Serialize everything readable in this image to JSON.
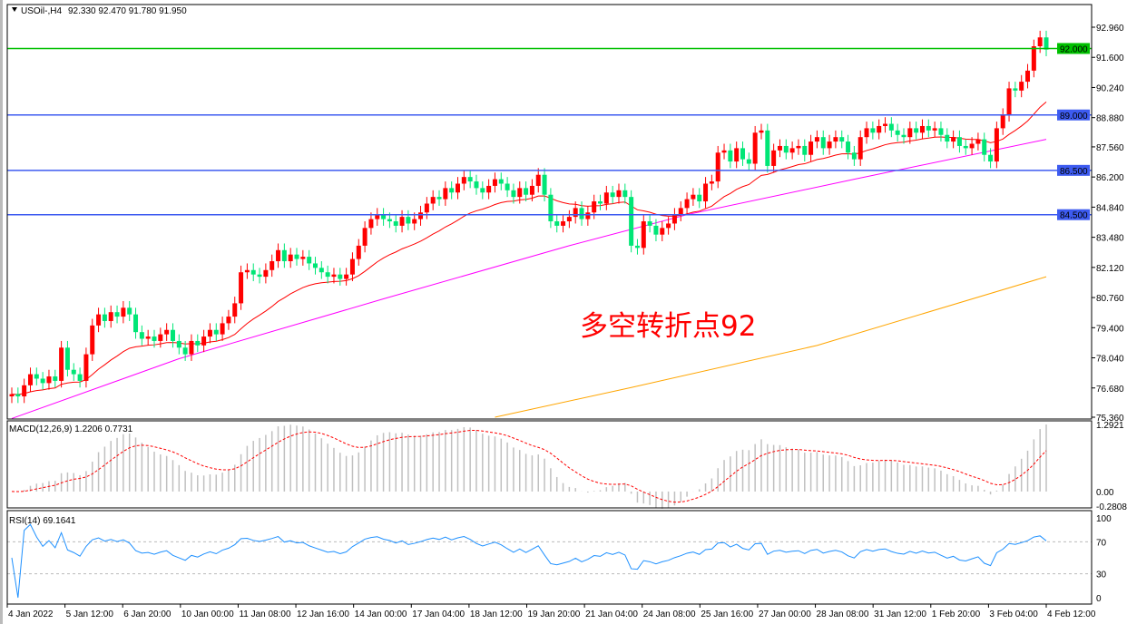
{
  "header": {
    "symbol": "USOil-,H4",
    "ohlc": "92.330 92.470 91.780 91.950"
  },
  "annotation": "多空转折点92",
  "colors": {
    "up": "#ff0000",
    "down": "#00e676",
    "ma_fast": "#ff0000",
    "ma_mid": "#ff00ff",
    "ma_slow": "#ffa500",
    "support_line": "#3d5bf0",
    "key_line": "#00c000",
    "macd_hist": "#c0c0c0",
    "macd_signal": "#ff0000",
    "rsi": "#1e90ff"
  },
  "chart_data": [
    {
      "type": "candlestick",
      "title": "USOil-,H4",
      "ylim": [
        75.36,
        92.96
      ],
      "y_ticks": [
        "92.960",
        "91.600",
        "90.240",
        "88.880",
        "87.560",
        "86.200",
        "84.840",
        "83.480",
        "82.120",
        "80.760",
        "79.400",
        "78.040",
        "76.680",
        "75.360"
      ],
      "x_ticks": [
        "4 Jan 2022",
        "5 Jan 12:00",
        "6 Jan 20:00",
        "10 Jan 00:00",
        "11 Jan 08:00",
        "12 Jan 16:00",
        "14 Jan 00:00",
        "17 Jan 04:00",
        "18 Jan 12:00",
        "19 Jan 20:00",
        "21 Jan 04:00",
        "24 Jan 08:00",
        "25 Jan 16:00",
        "27 Jan 00:00",
        "28 Jan 08:00",
        "31 Jan 12:00",
        "1 Feb 20:00",
        "3 Feb 04:00",
        "4 Feb 12:00"
      ],
      "closes": [
        76.4,
        76.3,
        76.8,
        77.3,
        77.1,
        76.9,
        77.2,
        77.0,
        78.5,
        77.5,
        77.3,
        77.0,
        78.2,
        79.5,
        80.0,
        79.7,
        80.1,
        79.9,
        80.3,
        80.0,
        79.2,
        78.9,
        79.0,
        78.8,
        79.1,
        79.3,
        78.8,
        78.5,
        78.2,
        78.8,
        78.6,
        79.0,
        79.3,
        79.1,
        79.6,
        79.9,
        80.5,
        81.9,
        82.0,
        81.8,
        81.7,
        82.0,
        82.4,
        82.9,
        82.4,
        82.7,
        82.5,
        82.6,
        82.3,
        82.1,
        81.9,
        81.7,
        81.8,
        81.6,
        81.8,
        82.5,
        83.1,
        83.9,
        84.3,
        84.5,
        84.3,
        84.2,
        84.0,
        84.4,
        84.1,
        84.3,
        84.6,
        85.0,
        85.3,
        85.2,
        85.7,
        85.5,
        85.9,
        86.2,
        86.0,
        85.7,
        85.5,
        85.8,
        86.1,
        85.9,
        85.6,
        85.3,
        85.7,
        85.4,
        85.8,
        86.3,
        85.4,
        84.2,
        84.0,
        84.2,
        84.4,
        84.8,
        84.3,
        84.6,
        85.1,
        85.0,
        85.5,
        85.3,
        85.6,
        85.3,
        83.1,
        83.0,
        84.2,
        84.0,
        83.6,
        83.9,
        84.1,
        84.5,
        84.8,
        85.2,
        85.4,
        85.1,
        85.9,
        86.0,
        87.3,
        87.4,
        86.9,
        87.5,
        87.0,
        86.8,
        88.2,
        88.3,
        86.7,
        87.4,
        87.6,
        87.3,
        87.5,
        87.6,
        87.2,
        87.8,
        88.0,
        87.5,
        87.8,
        88.0,
        87.8,
        87.3,
        87.0,
        88.0,
        88.4,
        88.2,
        88.5,
        88.6,
        88.3,
        88.1,
        88.0,
        88.4,
        88.2,
        88.5,
        88.3,
        88.4,
        88.1,
        87.8,
        88.0,
        87.6,
        87.5,
        87.7,
        87.9,
        87.2,
        86.9,
        88.4,
        89.0,
        90.2,
        90.1,
        90.5,
        91.0,
        92.1,
        92.5,
        91.95
      ],
      "ma_mid": [
        [
          0,
          75.3
        ],
        [
          27,
          78.0
        ],
        [
          60,
          80.7
        ],
        [
          90,
          83.1
        ],
        [
          109,
          84.5
        ],
        [
          136,
          86.1
        ],
        [
          167,
          87.9
        ]
      ],
      "ma_slow": [
        [
          78,
          75.36
        ],
        [
          100,
          76.7
        ],
        [
          130,
          78.6
        ],
        [
          167,
          81.7
        ]
      ],
      "levels": [
        {
          "value": 92.0,
          "label": "92.000",
          "kind": "key"
        },
        {
          "value": 89.0,
          "label": "89.000",
          "kind": "support"
        },
        {
          "value": 86.5,
          "label": "86.500",
          "kind": "support"
        },
        {
          "value": 84.5,
          "label": "84.500",
          "kind": "support"
        }
      ]
    },
    {
      "type": "bar",
      "title": "MACD(12,26,9) 1.2206 0.7731",
      "ylim": [
        -0.2808,
        1.2921
      ],
      "y_ticks": [
        "1.2921",
        "0.00",
        "-0.2808"
      ]
    },
    {
      "type": "line",
      "title": "RSI(14) 69.1641",
      "ylim": [
        0,
        100
      ],
      "y_ticks": [
        "100",
        "70",
        "30",
        "0"
      ],
      "levels": [
        70,
        30
      ]
    }
  ]
}
